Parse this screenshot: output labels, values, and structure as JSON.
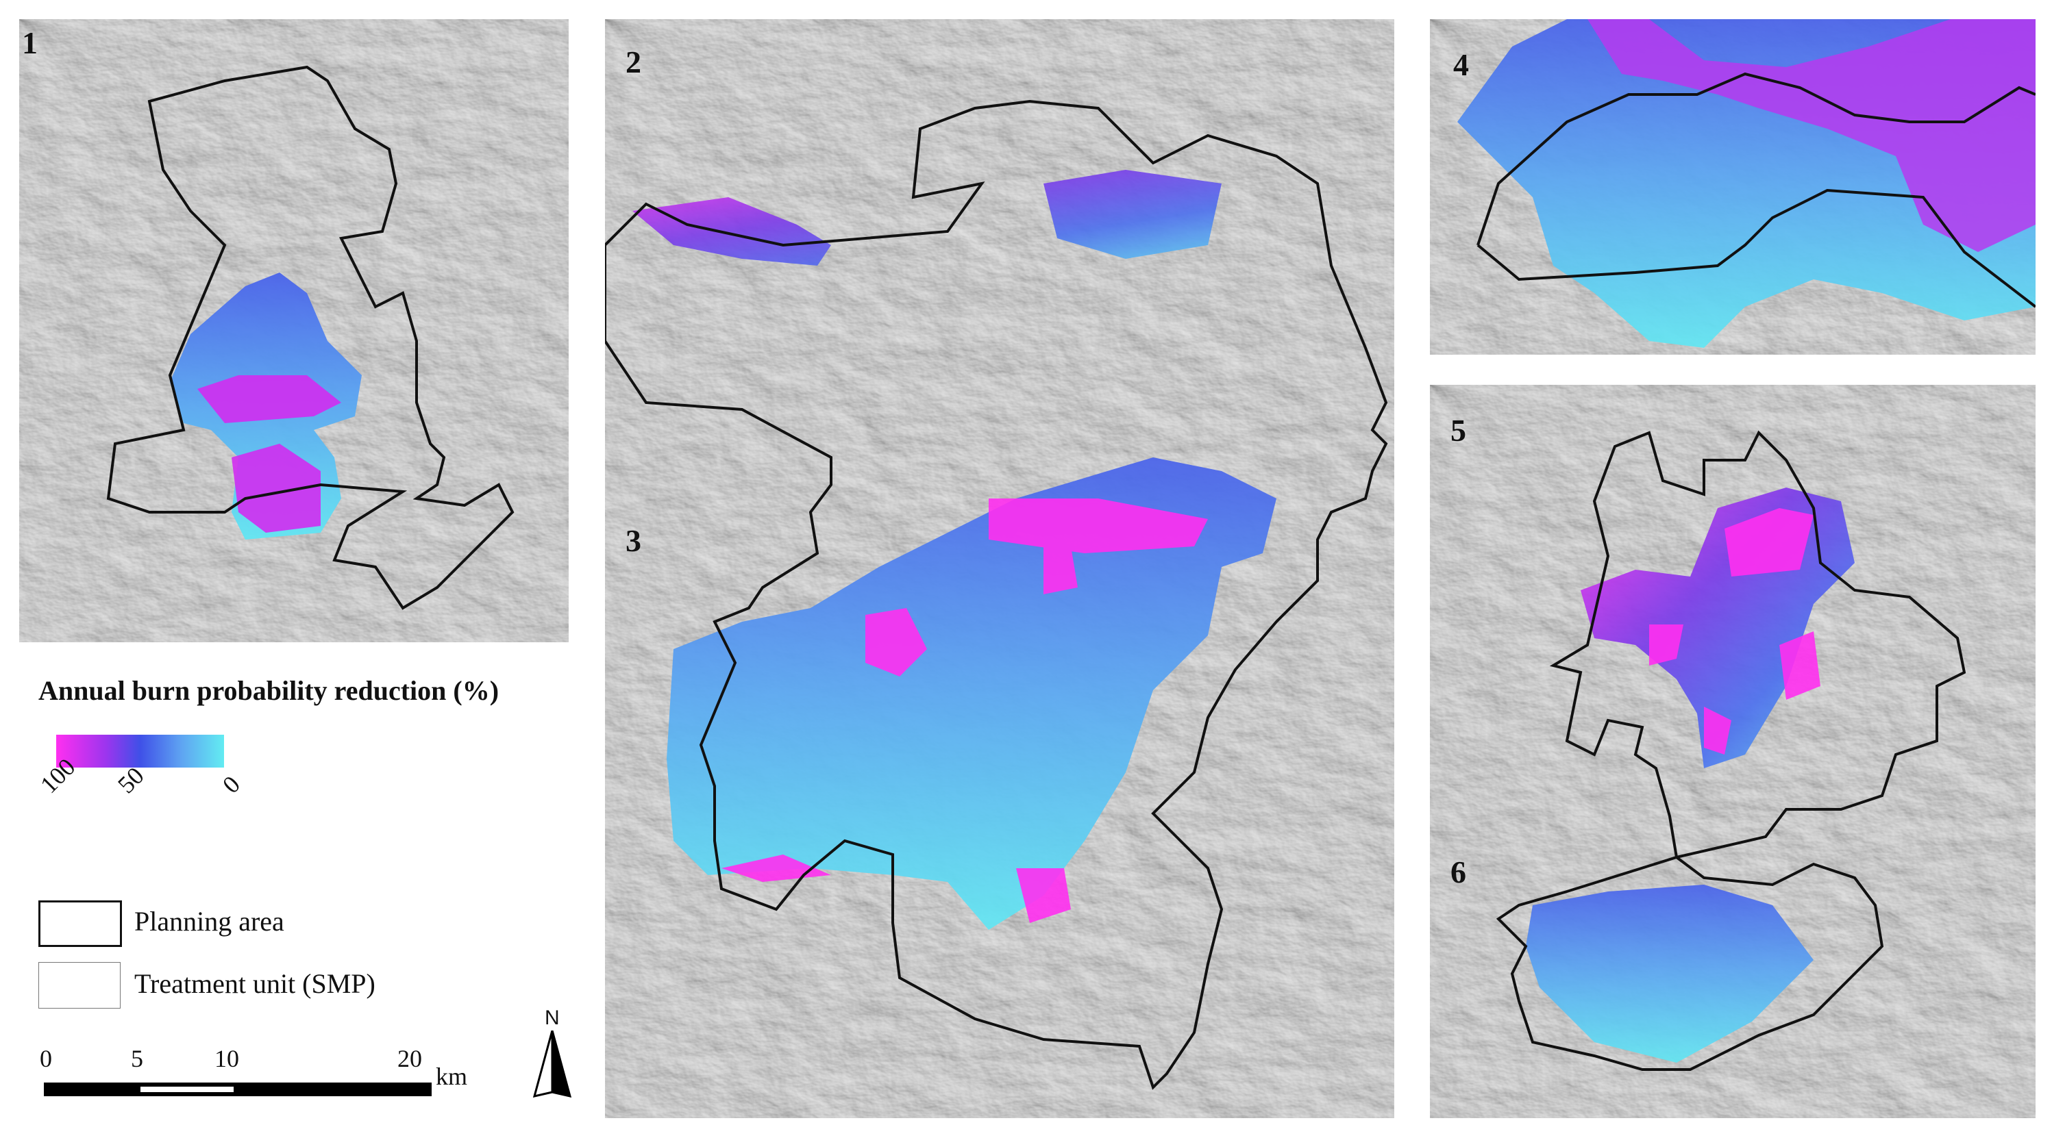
{
  "panels": [
    {
      "id": "1",
      "label": "1"
    },
    {
      "id": "2-3",
      "label_top": "2",
      "label_bottom": "3"
    },
    {
      "id": "4",
      "label": "4"
    },
    {
      "id": "5-6",
      "label_top": "5",
      "label_bottom": "6"
    }
  ],
  "legend": {
    "title": "Annual burn probability reduction (%)",
    "ramp_ticks": [
      "100",
      "50",
      "0"
    ],
    "ramp_colors": [
      "#ff2ff0",
      "#9b35ee",
      "#3f50e8",
      "#5fa5f2",
      "#62ecf2"
    ],
    "symbols": [
      {
        "name": "planning-area",
        "label": "Planning area"
      },
      {
        "name": "treatment-unit",
        "label": "Treatment unit (SMP)"
      }
    ]
  },
  "scale_bar": {
    "ticks": [
      "0",
      "5",
      "10",
      "20"
    ],
    "unit": "km"
  },
  "north_arrow": {
    "label": "N"
  },
  "colors": {
    "hillshade": "#d9d9d9",
    "boundary": "#111111",
    "high_reduction": "#ff2ff0",
    "low_reduction": "#62ecf2"
  }
}
